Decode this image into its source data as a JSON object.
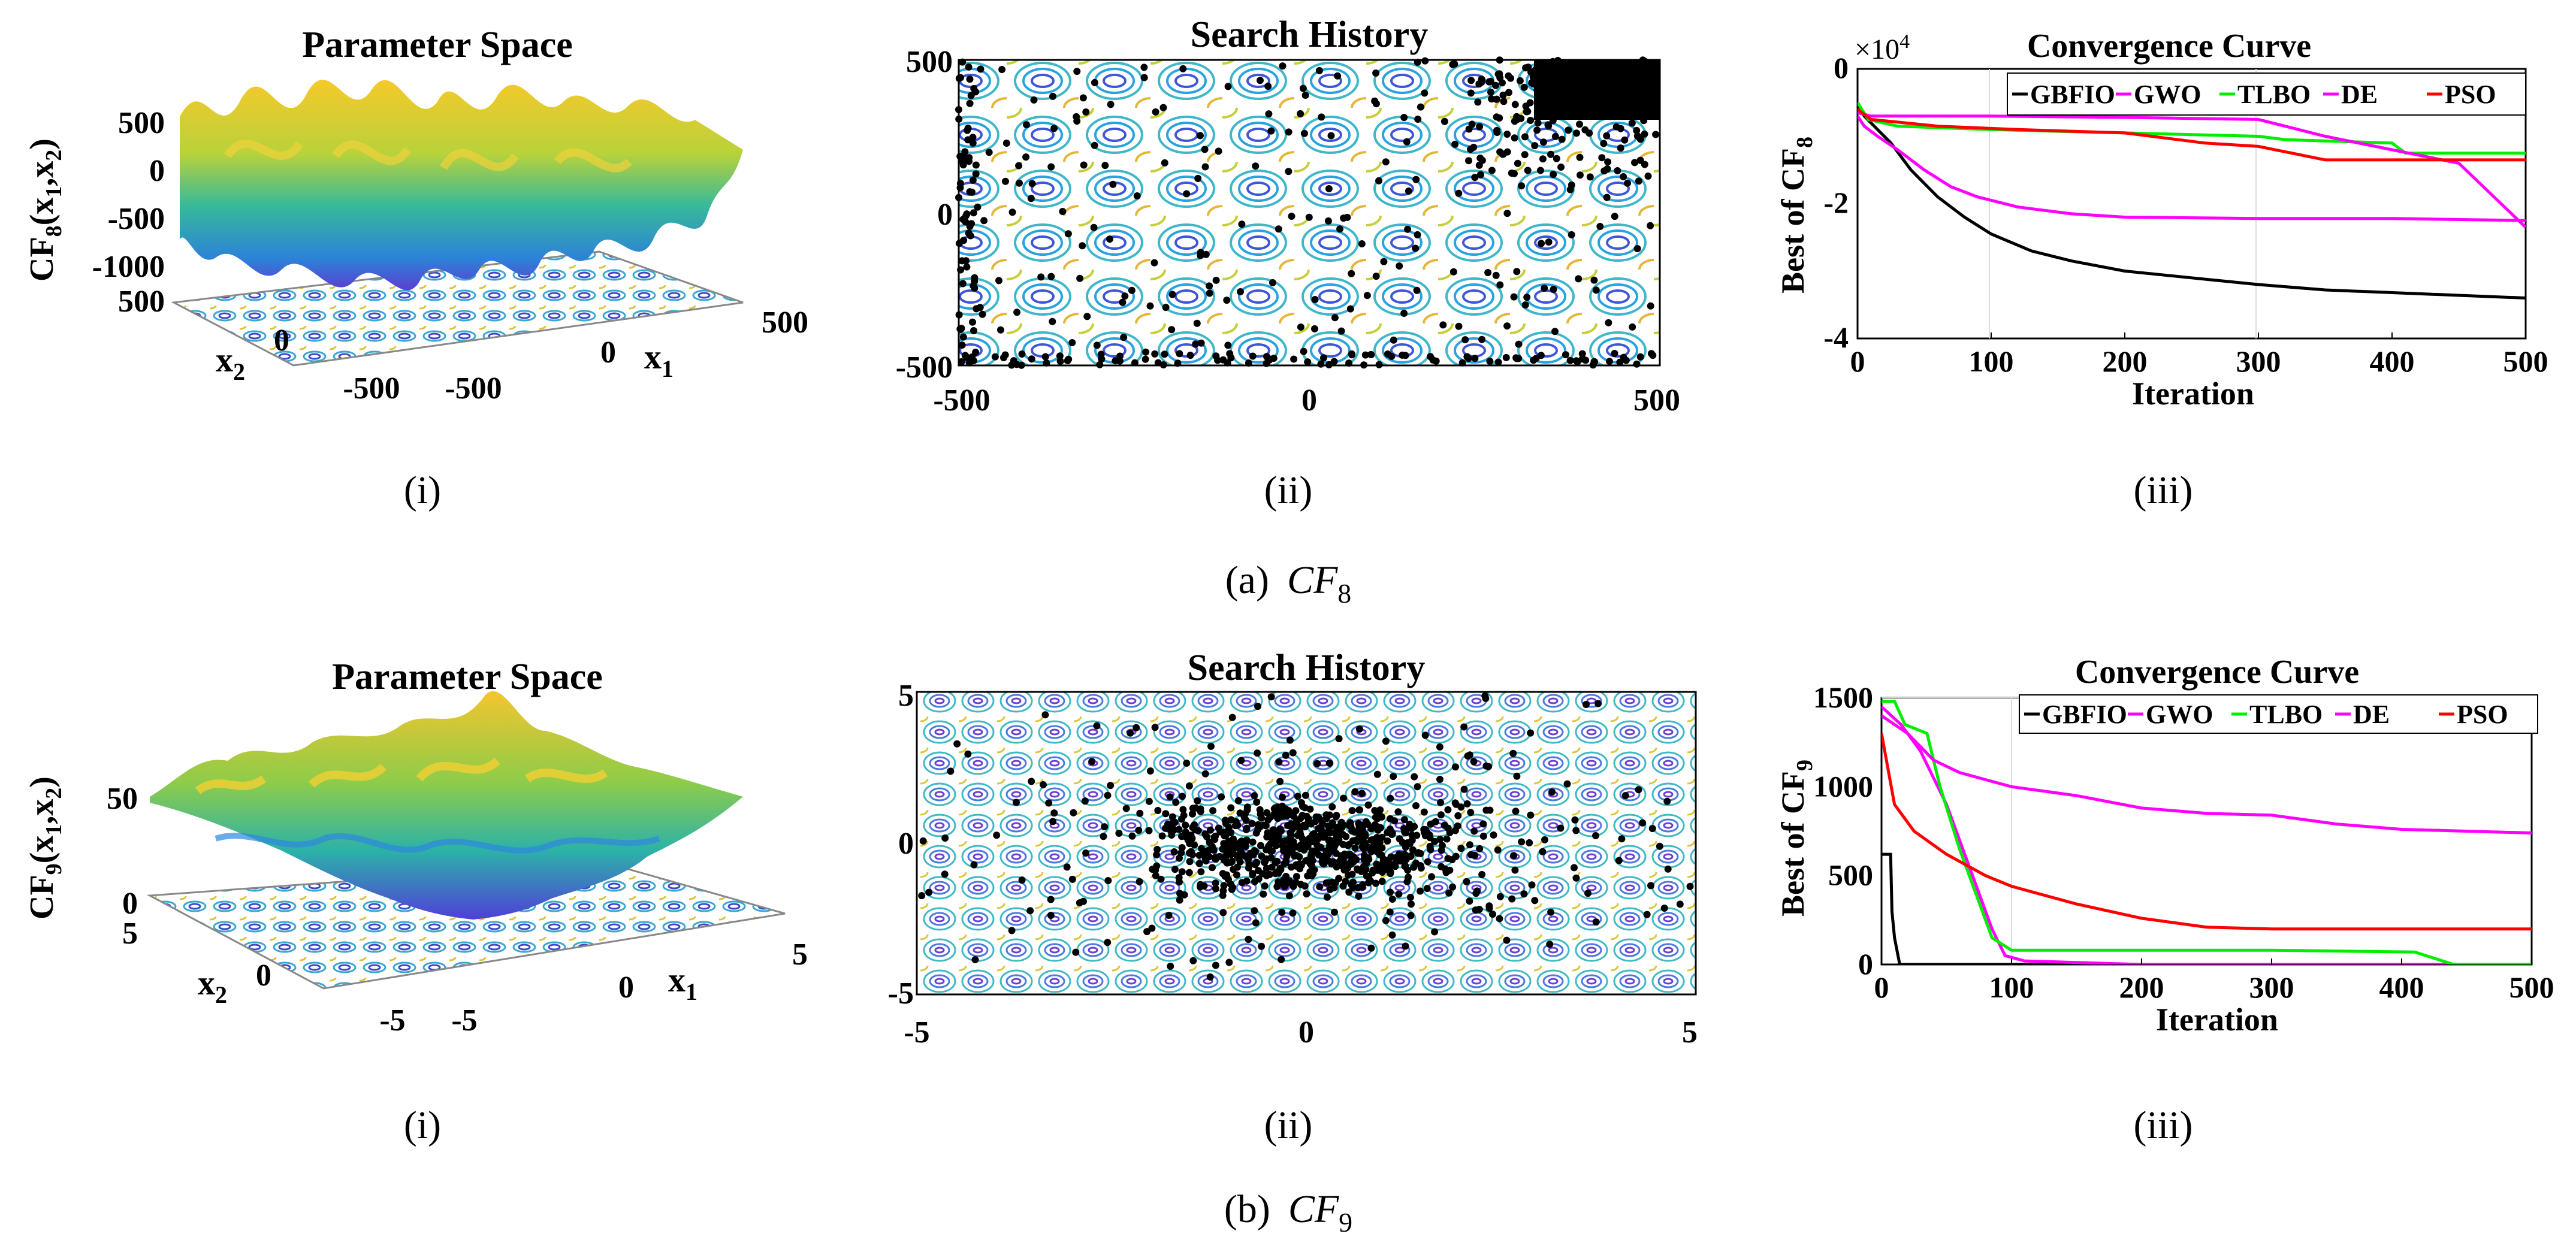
{
  "rows": [
    {
      "caption_prefix": "(a)",
      "caption_fn": "CF",
      "caption_sub": "8",
      "sub_labels": [
        "(i)",
        "(ii)",
        "(iii)"
      ],
      "panels": [
        {
          "title": "Parameter Space",
          "zlabel_main": "CF",
          "zlabel_sub": "8",
          "zlabel_args": "(x",
          "zlabel_arg1": "1",
          "zlabel_mid": ",x",
          "zlabel_arg2": "2",
          "zlabel_end": ")",
          "z_ticks": [
            "500",
            "0",
            "-500",
            "-1000"
          ],
          "x2_label": "x",
          "x2_sub": "2",
          "x1_label": "x",
          "x1_sub": "1",
          "x2_ticks": [
            "500",
            "0",
            "-500"
          ],
          "x1_ticks": [
            "-500",
            "0",
            "500"
          ]
        },
        {
          "title": "Search History",
          "x_ticks": [
            "-500",
            "0",
            "500"
          ],
          "y_ticks": [
            "500",
            "0",
            "-500"
          ]
        },
        {
          "title": "Convergence Curve",
          "exponent_label": "×10",
          "exponent_power": "4",
          "ylabel_main": "Best of CF",
          "ylabel_sub": "8",
          "xlabel": "Iteration",
          "x_ticks": [
            "0",
            "100",
            "200",
            "300",
            "400",
            "500"
          ],
          "y_ticks": [
            "0",
            "-2",
            "-4"
          ]
        }
      ]
    },
    {
      "caption_prefix": "(b)",
      "caption_fn": "CF",
      "caption_sub": "9",
      "sub_labels": [
        "(i)",
        "(ii)",
        "(iii)"
      ],
      "panels": [
        {
          "title": "Parameter Space",
          "zlabel_main": "CF",
          "zlabel_sub": "9",
          "zlabel_args": "(x",
          "zlabel_arg1": "1",
          "zlabel_mid": ",x",
          "zlabel_arg2": "2",
          "zlabel_end": ")",
          "z_ticks": [
            "50",
            "0"
          ],
          "x2_label": "x",
          "x2_sub": "2",
          "x1_label": "x",
          "x1_sub": "1",
          "x2_ticks": [
            "5",
            "0",
            "-5"
          ],
          "x1_ticks": [
            "-5",
            "0",
            "5"
          ]
        },
        {
          "title": "Search History",
          "x_ticks": [
            "-5",
            "0",
            "5"
          ],
          "y_ticks": [
            "5",
            "0",
            "-5"
          ]
        },
        {
          "title": "Convergence Curve",
          "ylabel_main": "Best of CF",
          "ylabel_sub": "9",
          "xlabel": "Iteration",
          "x_ticks": [
            "0",
            "100",
            "200",
            "300",
            "400",
            "500"
          ],
          "y_ticks": [
            "1500",
            "1000",
            "500",
            "0"
          ]
        }
      ]
    }
  ],
  "chart_data": [
    {
      "type": "line",
      "title": "Convergence Curve",
      "xlabel": "Iteration",
      "ylabel": "Best of CF8 (×10^4)",
      "xlim": [
        0,
        500
      ],
      "ylim": [
        -4,
        0
      ],
      "legend": [
        "GBFIO",
        "GWO",
        "TLBO",
        "DE",
        "PSO"
      ],
      "series": [
        {
          "name": "GBFIO",
          "color": "#000000",
          "points": [
            [
              0,
              -0.5
            ],
            [
              5,
              -0.7
            ],
            [
              15,
              -0.9
            ],
            [
              25,
              -1.1
            ],
            [
              40,
              -1.5
            ],
            [
              60,
              -1.9
            ],
            [
              80,
              -2.2
            ],
            [
              100,
              -2.45
            ],
            [
              130,
              -2.7
            ],
            [
              160,
              -2.85
            ],
            [
              200,
              -3.0
            ],
            [
              250,
              -3.1
            ],
            [
              300,
              -3.2
            ],
            [
              350,
              -3.28
            ],
            [
              400,
              -3.32
            ],
            [
              450,
              -3.36
            ],
            [
              500,
              -3.4
            ]
          ]
        },
        {
          "name": "GWO",
          "color": "#ff00ff",
          "points": [
            [
              0,
              -0.7
            ],
            [
              5,
              -0.85
            ],
            [
              15,
              -1.0
            ],
            [
              30,
              -1.2
            ],
            [
              50,
              -1.5
            ],
            [
              70,
              -1.75
            ],
            [
              90,
              -1.9
            ],
            [
              120,
              -2.05
            ],
            [
              160,
              -2.15
            ],
            [
              200,
              -2.2
            ],
            [
              300,
              -2.22
            ],
            [
              400,
              -2.22
            ],
            [
              500,
              -2.25
            ]
          ]
        },
        {
          "name": "TLBO",
          "color": "#00ee00",
          "points": [
            [
              0,
              -0.5
            ],
            [
              8,
              -0.75
            ],
            [
              30,
              -0.85
            ],
            [
              100,
              -0.9
            ],
            [
              200,
              -0.95
            ],
            [
              300,
              -1.0
            ],
            [
              320,
              -1.05
            ],
            [
              400,
              -1.1
            ],
            [
              410,
              -1.25
            ],
            [
              500,
              -1.25
            ]
          ]
        },
        {
          "name": "DE",
          "color": "#ff00ff",
          "points": [
            [
              0,
              -0.65
            ],
            [
              10,
              -0.7
            ],
            [
              100,
              -0.7
            ],
            [
              200,
              -0.72
            ],
            [
              300,
              -0.75
            ],
            [
              350,
              -1.0
            ],
            [
              400,
              -1.2
            ],
            [
              450,
              -1.4
            ],
            [
              500,
              -2.35
            ]
          ]
        },
        {
          "name": "PSO",
          "color": "#ff0000",
          "points": [
            [
              0,
              -0.6
            ],
            [
              10,
              -0.75
            ],
            [
              60,
              -0.85
            ],
            [
              120,
              -0.9
            ],
            [
              200,
              -0.95
            ],
            [
              260,
              -1.1
            ],
            [
              300,
              -1.15
            ],
            [
              350,
              -1.35
            ],
            [
              500,
              -1.35
            ]
          ]
        }
      ]
    },
    {
      "type": "line",
      "title": "Convergence Curve",
      "xlabel": "Iteration",
      "ylabel": "Best of CF9",
      "xlim": [
        0,
        500
      ],
      "ylim": [
        0,
        1500
      ],
      "legend": [
        "GBFIO",
        "GWO",
        "TLBO",
        "DE",
        "PSO"
      ],
      "series": [
        {
          "name": "GBFIO",
          "color": "#000000",
          "points": [
            [
              0,
              620
            ],
            [
              7,
              620
            ],
            [
              8,
              300
            ],
            [
              10,
              150
            ],
            [
              14,
              0
            ],
            [
              500,
              0
            ]
          ]
        },
        {
          "name": "GWO",
          "color": "#ff00ff",
          "points": [
            [
              0,
              1450
            ],
            [
              15,
              1350
            ],
            [
              30,
              1200
            ],
            [
              50,
              900
            ],
            [
              70,
              500
            ],
            [
              85,
              200
            ],
            [
              95,
              50
            ],
            [
              110,
              20
            ],
            [
              200,
              0
            ],
            [
              500,
              0
            ]
          ]
        },
        {
          "name": "TLBO",
          "color": "#00ee00",
          "points": [
            [
              0,
              1480
            ],
            [
              10,
              1480
            ],
            [
              18,
              1350
            ],
            [
              35,
              1300
            ],
            [
              45,
              1000
            ],
            [
              60,
              650
            ],
            [
              75,
              350
            ],
            [
              85,
              150
            ],
            [
              100,
              80
            ],
            [
              150,
              80
            ],
            [
              300,
              80
            ],
            [
              410,
              70
            ],
            [
              440,
              0
            ],
            [
              500,
              0
            ]
          ]
        },
        {
          "name": "DE",
          "color": "#ff00ff",
          "points": [
            [
              0,
              1400
            ],
            [
              20,
              1300
            ],
            [
              40,
              1150
            ],
            [
              60,
              1080
            ],
            [
              80,
              1040
            ],
            [
              100,
              1000
            ],
            [
              150,
              950
            ],
            [
              200,
              880
            ],
            [
              250,
              850
            ],
            [
              300,
              840
            ],
            [
              350,
              790
            ],
            [
              400,
              760
            ],
            [
              450,
              750
            ],
            [
              500,
              740
            ]
          ]
        },
        {
          "name": "PSO",
          "color": "#ff0000",
          "points": [
            [
              0,
              1300
            ],
            [
              10,
              900
            ],
            [
              25,
              750
            ],
            [
              50,
              620
            ],
            [
              80,
              500
            ],
            [
              100,
              440
            ],
            [
              150,
              340
            ],
            [
              200,
              260
            ],
            [
              250,
              210
            ],
            [
              300,
              200
            ],
            [
              350,
              200
            ],
            [
              500,
              200
            ]
          ]
        }
      ]
    }
  ]
}
